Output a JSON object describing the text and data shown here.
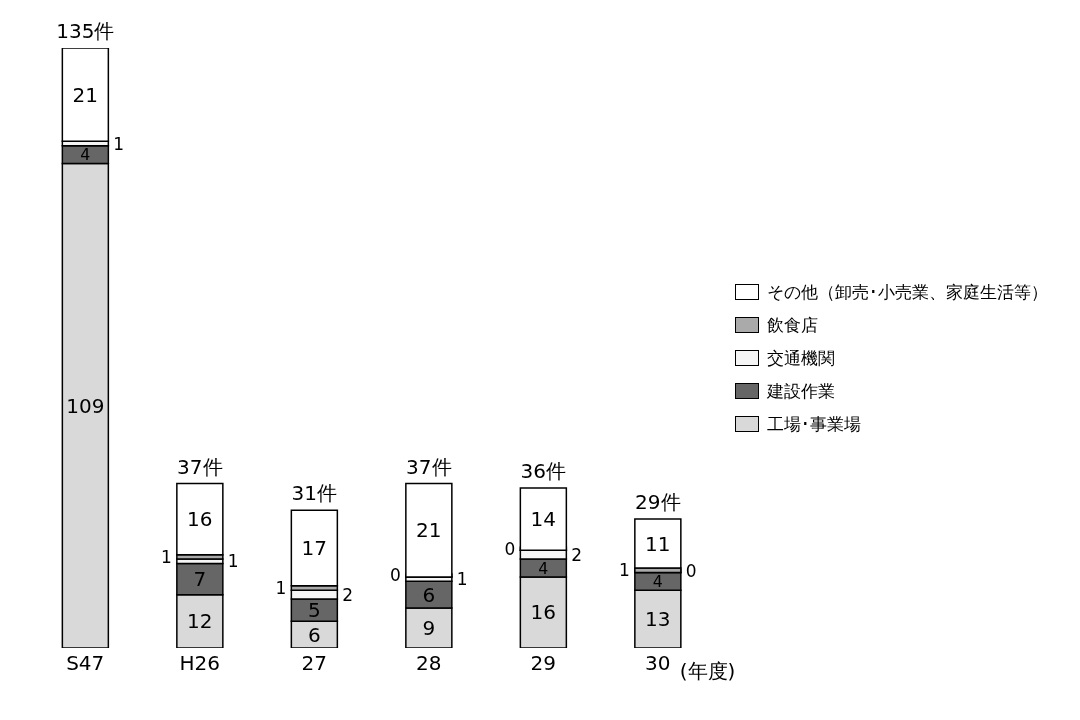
{
  "chart_data": {
    "type": "bar",
    "stacked": true,
    "xlabel": "(年度)",
    "categories": [
      "S47",
      "H26",
      "27",
      "28",
      "29",
      "30"
    ],
    "series": [
      {
        "name": "工場･事業場",
        "color": "#d9d9d9",
        "values": [
          109,
          12,
          6,
          9,
          16,
          13
        ]
      },
      {
        "name": "建設作業",
        "color": "#666666",
        "values": [
          4,
          7,
          5,
          6,
          4,
          4
        ]
      },
      {
        "name": "交通機関",
        "color": "#f5f5f5",
        "values": [
          1,
          1,
          2,
          1,
          2,
          0
        ]
      },
      {
        "name": "飲食店",
        "color": "#aaaaaa",
        "values": [
          null,
          1,
          1,
          0,
          0,
          1
        ]
      },
      {
        "name": "その他（卸売･小売業、家庭生活等）",
        "color": "#ffffff",
        "values": [
          21,
          16,
          17,
          21,
          14,
          11
        ]
      }
    ],
    "data_labels": true,
    "totals": [
      "135件",
      "37件",
      "31件",
      "37件",
      "36件",
      "29件"
    ],
    "legend": "right",
    "grid": false
  }
}
